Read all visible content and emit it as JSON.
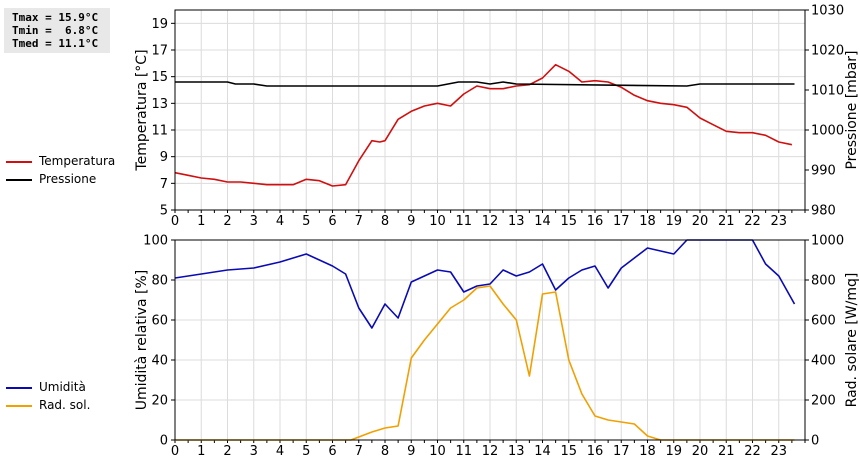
{
  "stats": {
    "tmax": "Tmax = 15.9°C",
    "tmin": "Tmin =  6.8°C",
    "tmed": "Tmed = 11.1°C"
  },
  "legend_top": [
    {
      "label": "Temperatura",
      "color": "#d01010"
    },
    {
      "label": "Pressione",
      "color": "#000000"
    }
  ],
  "legend_bottom": [
    {
      "label": "Umidità",
      "color": "#0a0ab4"
    },
    {
      "label": "Rad. sol.",
      "color": "#f0a000"
    }
  ],
  "colors": {
    "temperature": "#d01010",
    "pressure": "#000000",
    "humidity": "#0a0ab4",
    "radiation": "#f0a000"
  },
  "chart_data": [
    {
      "type": "line",
      "x_ticks": [
        "0",
        "1",
        "2",
        "3",
        "4",
        "5",
        "6",
        "7",
        "8",
        "9",
        "10",
        "11",
        "12",
        "13",
        "14",
        "15",
        "16",
        "17",
        "18",
        "19",
        "20",
        "21",
        "22",
        "23"
      ],
      "xlim": [
        0,
        24
      ],
      "ylabel": "Temperatura [°C]",
      "ylim": [
        5,
        20
      ],
      "y_ticks": [
        "5",
        "7",
        "9",
        "11",
        "13",
        "15",
        "17",
        "19"
      ],
      "y2label": "Pressione [mbar]",
      "y2lim": [
        980,
        1030
      ],
      "y2_ticks": [
        "980",
        "990",
        "1000",
        "1010",
        "1020",
        "1030"
      ],
      "grid": true,
      "series": [
        {
          "name": "Temperatura",
          "axis": "left",
          "x": [
            0,
            0.5,
            1,
            1.5,
            2,
            2.5,
            3,
            3.5,
            4,
            4.5,
            5,
            5.5,
            6,
            6.5,
            7,
            7.5,
            7.8,
            8,
            8.5,
            9,
            9.5,
            10,
            10.5,
            11,
            11.5,
            12,
            12.5,
            13,
            13.5,
            14,
            14.5,
            15,
            15.5,
            16,
            16.5,
            17,
            17.5,
            18,
            18.5,
            19,
            19.5,
            20,
            20.5,
            21,
            21.5,
            22,
            22.5,
            23,
            23.5
          ],
          "y": [
            7.8,
            7.6,
            7.4,
            7.3,
            7.1,
            7.1,
            7.0,
            6.9,
            6.9,
            6.9,
            7.3,
            7.2,
            6.8,
            6.9,
            8.7,
            10.2,
            10.1,
            10.2,
            11.8,
            12.4,
            12.8,
            13.0,
            12.8,
            13.7,
            14.3,
            14.1,
            14.1,
            14.3,
            14.4,
            14.9,
            15.9,
            15.4,
            14.6,
            14.7,
            14.6,
            14.2,
            13.6,
            13.2,
            13.0,
            12.9,
            12.7,
            11.9,
            11.4,
            10.9,
            10.8,
            10.8,
            10.6,
            10.1,
            9.9
          ]
        },
        {
          "name": "Pressione",
          "axis": "right",
          "x": [
            0,
            2,
            2.3,
            3,
            3.5,
            9.5,
            10,
            10.8,
            11.5,
            12,
            12.5,
            13,
            19.5,
            20,
            23.6
          ],
          "y": [
            1012,
            1012,
            1011.5,
            1011.5,
            1011,
            1011,
            1011,
            1012,
            1012,
            1011.5,
            1012,
            1011.5,
            1011,
            1011.5,
            1011.5
          ]
        }
      ]
    },
    {
      "type": "line",
      "x_ticks": [
        "0",
        "1",
        "2",
        "3",
        "4",
        "5",
        "6",
        "7",
        "8",
        "9",
        "10",
        "11",
        "12",
        "13",
        "14",
        "15",
        "16",
        "17",
        "18",
        "19",
        "20",
        "21",
        "22",
        "23"
      ],
      "xlim": [
        0,
        24
      ],
      "ylabel": "Umidità relativa [%]",
      "ylim": [
        0,
        100
      ],
      "y_ticks": [
        "0",
        "20",
        "40",
        "60",
        "80",
        "100"
      ],
      "y2label": "Rad. solare [W/mq]",
      "y2lim": [
        0,
        1000
      ],
      "y2_ticks": [
        "0",
        "200",
        "400",
        "600",
        "800",
        "1000"
      ],
      "grid": true,
      "series": [
        {
          "name": "Umidità",
          "axis": "left",
          "x": [
            0,
            1,
            2,
            3,
            4,
            5,
            6,
            6.5,
            7,
            7.5,
            8,
            8.5,
            9,
            10,
            10.5,
            11,
            11.5,
            12,
            12.5,
            13,
            13.5,
            14,
            14.5,
            15,
            15.5,
            16,
            16.5,
            17,
            18,
            19,
            19.5,
            20,
            21,
            22,
            22.5,
            23,
            23.6
          ],
          "y": [
            81,
            83,
            85,
            86,
            89,
            93,
            87,
            83,
            66,
            56,
            68,
            61,
            79,
            85,
            84,
            74,
            77,
            78,
            85,
            82,
            84,
            88,
            75,
            81,
            85,
            87,
            76,
            86,
            96,
            93,
            100,
            100,
            100,
            100,
            88,
            82,
            68
          ]
        },
        {
          "name": "Rad. sol.",
          "axis": "right",
          "x": [
            0,
            6,
            6.7,
            7.5,
            8,
            8.5,
            9,
            9.5,
            10,
            10.5,
            11,
            11.5,
            12,
            12.5,
            13,
            13.5,
            14,
            14.5,
            15,
            15.5,
            16,
            16.5,
            17,
            17.5,
            18,
            18.5,
            23.6
          ],
          "y": [
            0,
            0,
            0,
            40,
            60,
            70,
            410,
            500,
            580,
            660,
            700,
            760,
            770,
            680,
            600,
            320,
            730,
            740,
            400,
            230,
            120,
            100,
            90,
            80,
            20,
            0,
            0
          ]
        }
      ]
    }
  ]
}
